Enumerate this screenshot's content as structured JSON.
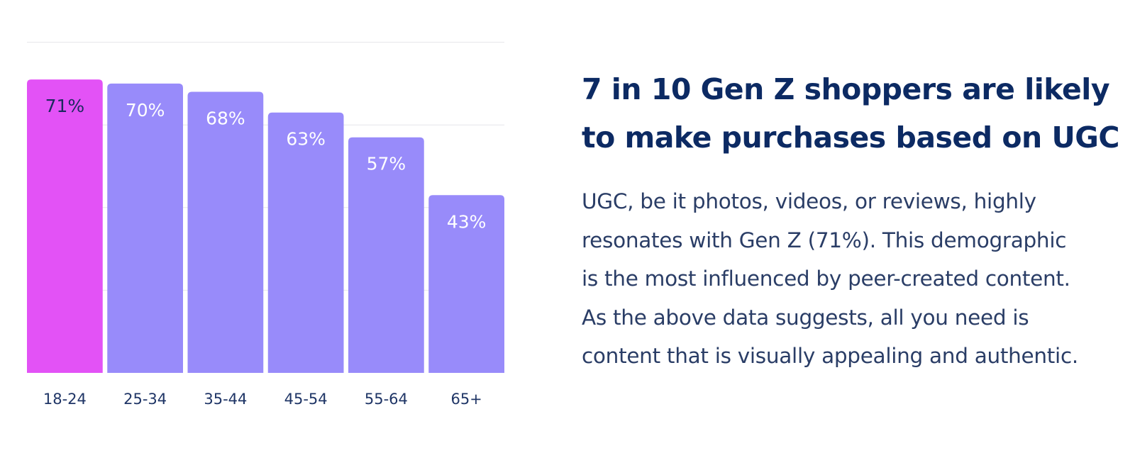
{
  "chart_data": {
    "type": "bar",
    "categories": [
      "18-24",
      "25-34",
      "35-44",
      "45-54",
      "55-64",
      "65+"
    ],
    "values": [
      71,
      70,
      68,
      63,
      57,
      43
    ],
    "data_labels": [
      "71%",
      "70%",
      "68%",
      "63%",
      "57%",
      "43%"
    ],
    "title": "",
    "xlabel": "",
    "ylabel": "",
    "ylim": [
      0,
      80
    ],
    "grid": true,
    "legend": "none",
    "highlight_index": 0,
    "colors": {
      "highlight": "#e352f6",
      "bar": "#988bfa",
      "grid": "#e6e6ea",
      "label_highlight": "#1a2a5e",
      "label_bar": "#ffffff",
      "tick": "#1f3566"
    }
  },
  "text": {
    "heading_line1": "7 in 10 Gen Z shoppers are likely",
    "heading_line2": "to make purchases based on UGC",
    "body_lines": [
      "UGC, be it photos, videos, or reviews, highly",
      "resonates with Gen Z (71%). This demographic",
      "is the most influenced by peer-created content.",
      "As the above data suggests, all you need is",
      "content that is visually appealing and authentic."
    ]
  }
}
